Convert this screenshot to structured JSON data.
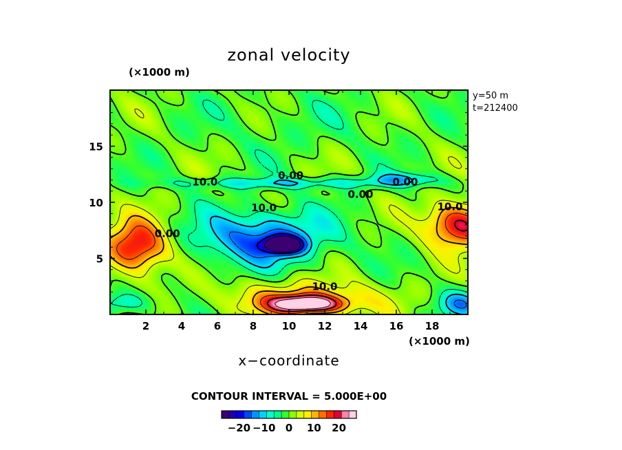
{
  "chart_data": {
    "type": "heatmap",
    "title": "zonal velocity",
    "xlabel": "x−coordinate",
    "x_unit": "(×1000 m)",
    "y_unit": "(×1000 m)",
    "info": [
      "y=50  m",
      "t=212400"
    ],
    "contour_interval_text": "CONTOUR INTERVAL = 5.000E+00",
    "xlim": [
      0,
      20
    ],
    "ylim": [
      0,
      20
    ],
    "x_ticks": [
      2,
      4,
      6,
      8,
      10,
      12,
      14,
      16,
      18
    ],
    "x_tick_labels": [
      "2",
      "4",
      "6",
      "8",
      "10",
      "12",
      "14",
      "16",
      "18"
    ],
    "y_ticks": [
      5,
      10,
      15
    ],
    "y_tick_labels": [
      "5",
      "10",
      "15"
    ],
    "contour_labels": [
      {
        "text": "10.0",
        "x": 5.3,
        "y": 11.8
      },
      {
        "text": "0.00",
        "x": 10.1,
        "y": 12.4
      },
      {
        "text": "0.00",
        "x": 16.5,
        "y": 11.8
      },
      {
        "text": "0.00",
        "x": 14.0,
        "y": 10.7
      },
      {
        "text": "10.0",
        "x": 8.6,
        "y": 9.5
      },
      {
        "text": "10.0",
        "x": 19.0,
        "y": 9.6
      },
      {
        "text": "0.00",
        "x": 3.2,
        "y": 7.2
      },
      {
        "text": "10.0",
        "x": 12.0,
        "y": 2.5
      }
    ],
    "features": [
      {
        "name": "negative core",
        "x": 9.7,
        "y": 6.2,
        "value": -30,
        "sx": 1.0,
        "sy": 0.7
      },
      {
        "name": "negative jet",
        "x": 8.5,
        "y": 6.8,
        "value": -17,
        "sx": 3.6,
        "sy": 2.4
      },
      {
        "name": "positive near-bottom core",
        "x": 11.0,
        "y": 0.9,
        "value": 27,
        "sx": 1.9,
        "sy": 0.75
      },
      {
        "name": "positive near-bottom lobe",
        "x": 10.8,
        "y": 1.4,
        "value": 12,
        "sx": 4.2,
        "sy": 1.6
      },
      {
        "name": "positive left lobe",
        "x": 1.5,
        "y": 6.0,
        "value": 22,
        "sx": 1.7,
        "sy": 2.3
      },
      {
        "name": "positive right lobe",
        "x": 19.5,
        "y": 8.0,
        "value": 22,
        "sx": 1.8,
        "sy": 2.0
      },
      {
        "name": "negative band",
        "x": 10.0,
        "y": 11.7,
        "value": -9,
        "sx": 7.0,
        "sy": 0.5
      },
      {
        "name": "negative band right",
        "x": 16.5,
        "y": 12.1,
        "value": -9,
        "sx": 2.0,
        "sy": 0.6
      },
      {
        "name": "negative bottom left",
        "x": 0.8,
        "y": 1.0,
        "value": -9,
        "sx": 1.6,
        "sy": 1.0
      },
      {
        "name": "negative bottom right",
        "x": 19.6,
        "y": 1.0,
        "value": -12,
        "sx": 1.3,
        "sy": 1.2
      },
      {
        "name": "upper field",
        "x": 10.0,
        "y": 17.0,
        "value": -2,
        "sx": 6.0,
        "sy": 3.0
      }
    ],
    "colorbar": {
      "vmin": -27,
      "vmax": 27,
      "ticks": [
        -20,
        -10,
        0,
        10,
        20
      ],
      "tick_labels": [
        "−20",
        "−10",
        "0",
        "10",
        "20"
      ],
      "colors": [
        "#3c0070",
        "#1f00b0",
        "#0000f0",
        "#0046ff",
        "#0096ff",
        "#00d2ff",
        "#00ffd2",
        "#00ff8c",
        "#32ff32",
        "#8cff00",
        "#d2ff00",
        "#fff000",
        "#ffb400",
        "#ff6e00",
        "#ff2800",
        "#e60032",
        "#ff82aa",
        "#ffd2e6"
      ]
    }
  }
}
